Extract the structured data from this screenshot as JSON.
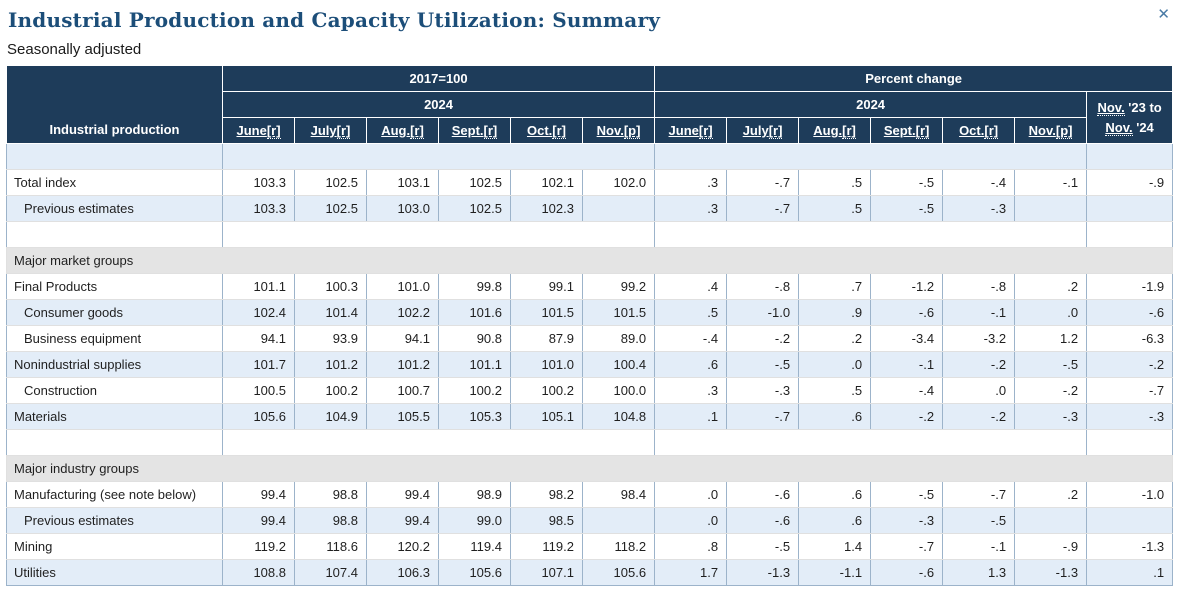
{
  "page": {
    "title": "Industrial Production and Capacity Utilization: Summary",
    "subtitle": "Seasonally adjusted",
    "close_glyph": "✕"
  },
  "colors": {
    "header_bg": "#1e3c5a",
    "row_alt_blue": "#e3edf8",
    "section_bg": "#e4e4e4",
    "vertical_border": "#9cb3ca",
    "horizontal_border": "#e0e0e0",
    "title_color": "#1c4e79",
    "close_color": "#4a7ba6",
    "text_color": "#1f1f1f"
  },
  "table": {
    "corner_label": "Industrial production",
    "group_headers": [
      "2017=100",
      "Percent change"
    ],
    "year": "2024",
    "months": [
      {
        "label": "June",
        "sup": "[r]"
      },
      {
        "label": "July",
        "sup": "[r]"
      },
      {
        "label": "Aug.",
        "sup": "[r]"
      },
      {
        "label": "Sept.",
        "sup": "[r]"
      },
      {
        "label": "Oct.",
        "sup": "[r]"
      },
      {
        "label": "Nov.",
        "sup": "[p]"
      }
    ],
    "yoy_header": {
      "line1_link": "Nov.",
      "line1_rest": " '23 to",
      "line2_link": "Nov.",
      "line2_rest": " '24"
    },
    "rows": [
      {
        "type": "spacer"
      },
      {
        "type": "data",
        "label": "Total index",
        "indent": false,
        "index": [
          "103.3",
          "102.5",
          "103.1",
          "102.5",
          "102.1",
          "102.0"
        ],
        "pct": [
          ".3",
          "-.7",
          ".5",
          "-.5",
          "-.4",
          "-.1"
        ],
        "yoy": "-.9"
      },
      {
        "type": "data",
        "label": "Previous estimates",
        "indent": true,
        "index": [
          "103.3",
          "102.5",
          "103.0",
          "102.5",
          "102.3",
          ""
        ],
        "pct": [
          ".3",
          "-.7",
          ".5",
          "-.5",
          "-.3",
          ""
        ],
        "yoy": ""
      },
      {
        "type": "spacer"
      },
      {
        "type": "section",
        "label": "Major market groups"
      },
      {
        "type": "data",
        "label": "Final Products",
        "indent": false,
        "index": [
          "101.1",
          "100.3",
          "101.0",
          "99.8",
          "99.1",
          "99.2"
        ],
        "pct": [
          ".4",
          "-.8",
          ".7",
          "-1.2",
          "-.8",
          ".2"
        ],
        "yoy": "-1.9"
      },
      {
        "type": "data",
        "label": "Consumer goods",
        "indent": true,
        "index": [
          "102.4",
          "101.4",
          "102.2",
          "101.6",
          "101.5",
          "101.5"
        ],
        "pct": [
          ".5",
          "-1.0",
          ".9",
          "-.6",
          "-.1",
          ".0"
        ],
        "yoy": "-.6"
      },
      {
        "type": "data",
        "label": "Business equipment",
        "indent": true,
        "index": [
          "94.1",
          "93.9",
          "94.1",
          "90.8",
          "87.9",
          "89.0"
        ],
        "pct": [
          "-.4",
          "-.2",
          ".2",
          "-3.4",
          "-3.2",
          "1.2"
        ],
        "yoy": "-6.3"
      },
      {
        "type": "data",
        "label": "Nonindustrial supplies",
        "indent": false,
        "index": [
          "101.7",
          "101.2",
          "101.2",
          "101.1",
          "101.0",
          "100.4"
        ],
        "pct": [
          ".6",
          "-.5",
          ".0",
          "-.1",
          "-.2",
          "-.5"
        ],
        "yoy": "-.2"
      },
      {
        "type": "data",
        "label": "Construction",
        "indent": true,
        "index": [
          "100.5",
          "100.2",
          "100.7",
          "100.2",
          "100.2",
          "100.0"
        ],
        "pct": [
          ".3",
          "-.3",
          ".5",
          "-.4",
          ".0",
          "-.2"
        ],
        "yoy": "-.7"
      },
      {
        "type": "data",
        "label": "Materials",
        "indent": false,
        "index": [
          "105.6",
          "104.9",
          "105.5",
          "105.3",
          "105.1",
          "104.8"
        ],
        "pct": [
          ".1",
          "-.7",
          ".6",
          "-.2",
          "-.2",
          "-.3"
        ],
        "yoy": "-.3"
      },
      {
        "type": "spacer"
      },
      {
        "type": "section",
        "label": "Major industry groups"
      },
      {
        "type": "data",
        "label": "Manufacturing (see note below)",
        "indent": false,
        "index": [
          "99.4",
          "98.8",
          "99.4",
          "98.9",
          "98.2",
          "98.4"
        ],
        "pct": [
          ".0",
          "-.6",
          ".6",
          "-.5",
          "-.7",
          ".2"
        ],
        "yoy": "-1.0"
      },
      {
        "type": "data",
        "label": "Previous estimates",
        "indent": true,
        "index": [
          "99.4",
          "98.8",
          "99.4",
          "99.0",
          "98.5",
          ""
        ],
        "pct": [
          ".0",
          "-.6",
          ".6",
          "-.3",
          "-.5",
          ""
        ],
        "yoy": ""
      },
      {
        "type": "data",
        "label": "Mining",
        "indent": false,
        "index": [
          "119.2",
          "118.6",
          "120.2",
          "119.4",
          "119.2",
          "118.2"
        ],
        "pct": [
          ".8",
          "-.5",
          "1.4",
          "-.7",
          "-.1",
          "-.9"
        ],
        "yoy": "-1.3"
      },
      {
        "type": "data",
        "label": "Utilities",
        "indent": false,
        "index": [
          "108.8",
          "107.4",
          "106.3",
          "105.6",
          "107.1",
          "105.6"
        ],
        "pct": [
          "1.7",
          "-1.3",
          "-1.1",
          "-.6",
          "1.3",
          "-1.3"
        ],
        "yoy": ".1"
      }
    ]
  }
}
